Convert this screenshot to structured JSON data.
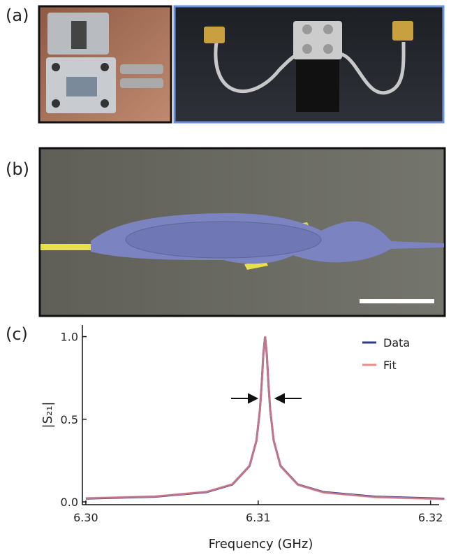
{
  "panel_labels": [
    "(a)",
    "(b)",
    "(c)"
  ],
  "chart_data": {
    "type": "line",
    "x_label": "Frequency (GHz)",
    "y_label": "|S₂₁|",
    "x": [
      6.3,
      6.304,
      6.307,
      6.3085,
      6.3095,
      6.3099,
      6.3101,
      6.3102,
      6.3103,
      6.3104,
      6.3105,
      6.3106,
      6.3107,
      6.3109,
      6.3113,
      6.3123,
      6.3138,
      6.3168,
      6.3208
    ],
    "series": [
      {
        "name": "Data",
        "color": "#2e3a8c",
        "values": [
          0.02,
          0.031,
          0.059,
          0.105,
          0.217,
          0.371,
          0.555,
          0.707,
          0.894,
          1.0,
          0.894,
          0.707,
          0.555,
          0.371,
          0.217,
          0.105,
          0.059,
          0.031,
          0.019
        ]
      },
      {
        "name": "Fit",
        "color": "#f08a8a",
        "values": [
          0.022,
          0.033,
          0.061,
          0.107,
          0.219,
          0.372,
          0.556,
          0.707,
          0.894,
          1.0,
          0.894,
          0.707,
          0.555,
          0.37,
          0.215,
          0.103,
          0.056,
          0.028,
          0.016
        ]
      }
    ],
    "xlim": [
      6.2998,
      6.3205
    ],
    "ylim": [
      -0.017,
      1.07
    ],
    "xticks": [
      {
        "value": 6.3,
        "label": "6.30"
      },
      6.31,
      {
        "value": 6.32,
        "label": "6.32"
      }
    ],
    "yticks": [
      {
        "value": 0,
        "label": "0.0"
      },
      0.5,
      {
        "value": 1,
        "label": "1.0"
      }
    ],
    "legend": "upper right"
  }
}
